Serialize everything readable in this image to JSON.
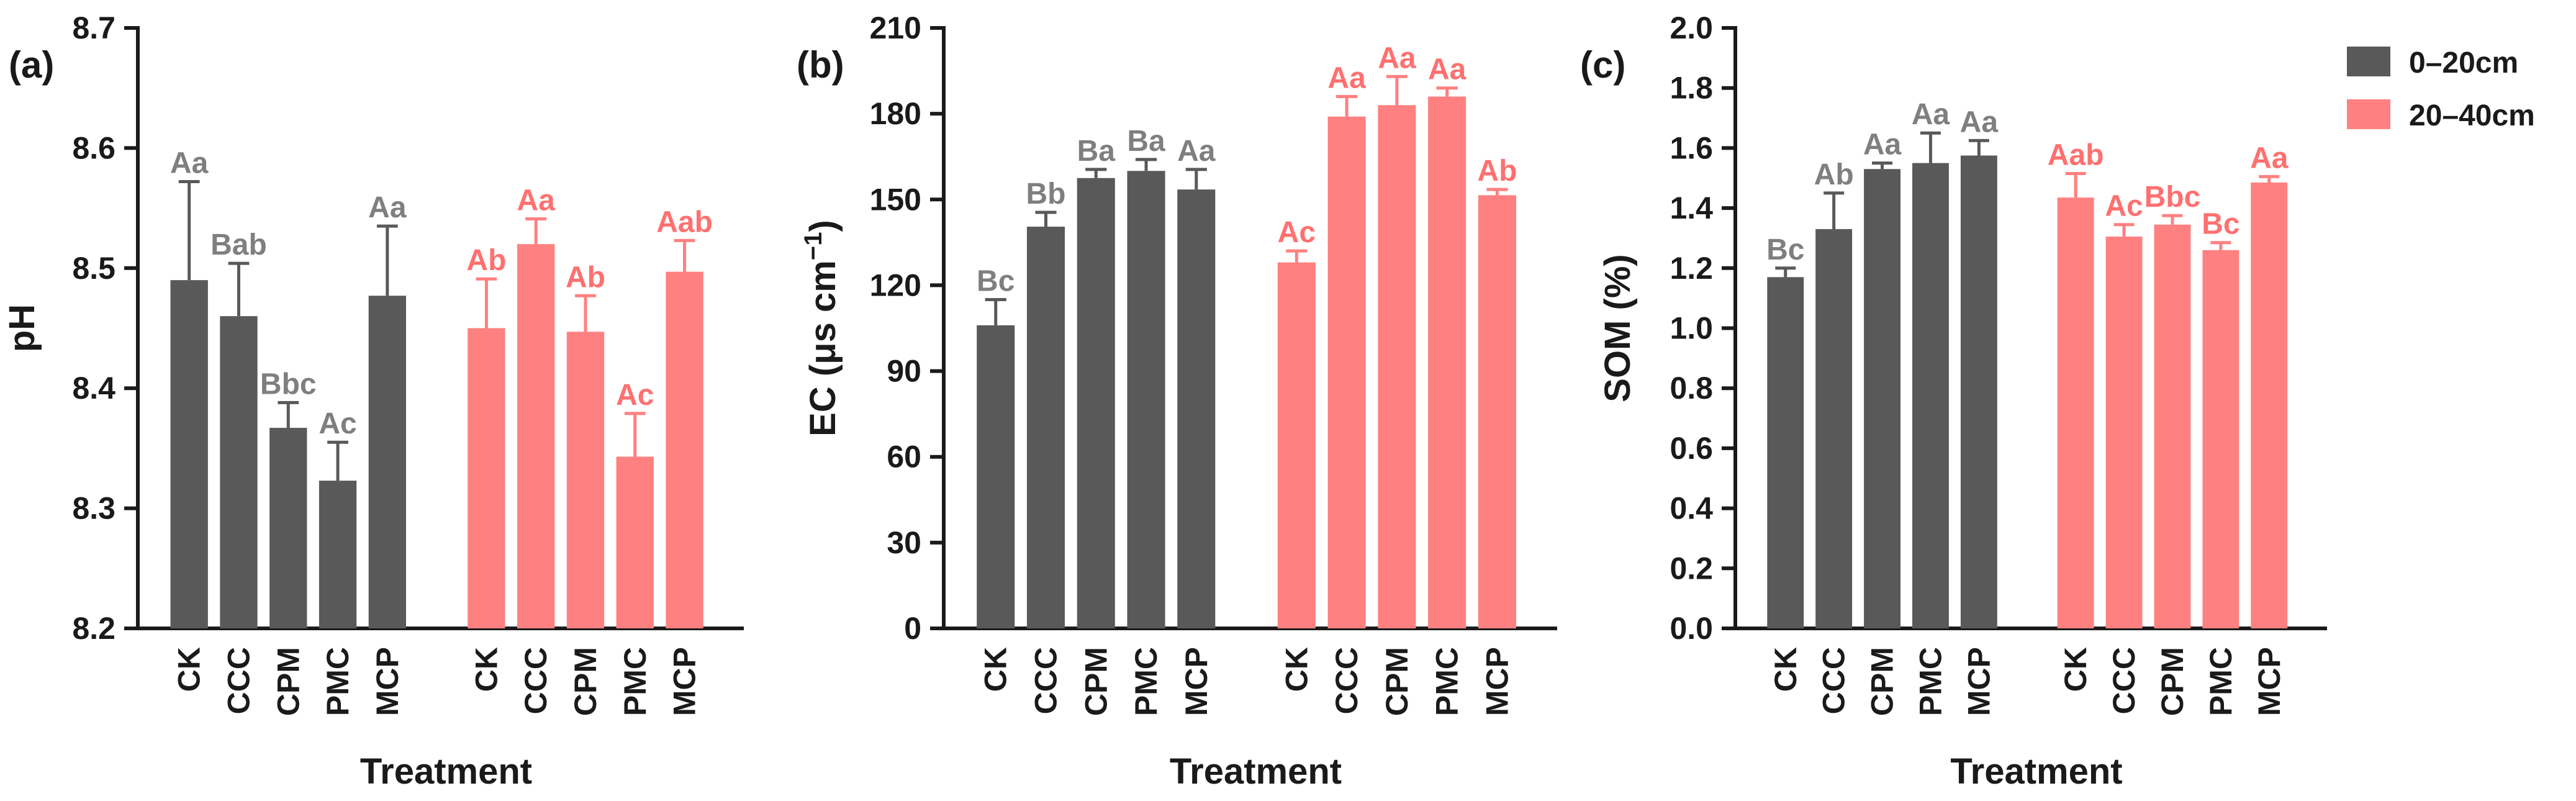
{
  "chart_data": [
    {
      "type": "bar",
      "panel_label": "(a)",
      "ylabel": "pH",
      "xlabel": "Treatment",
      "ylim": [
        8.2,
        8.7
      ],
      "yticks": [
        8.2,
        8.3,
        8.4,
        8.5,
        8.6,
        8.7
      ],
      "ytick_labels": [
        "8.2",
        "8.3",
        "8.4",
        "8.5",
        "8.6",
        "8.7"
      ],
      "categories": [
        "CK",
        "CCC",
        "CPM",
        "PMC",
        "MCP"
      ],
      "series": [
        {
          "name": "0–20cm",
          "values": [
            8.49,
            8.46,
            8.367,
            8.323,
            8.477
          ],
          "errors": [
            0.082,
            0.044,
            0.021,
            0.032,
            0.058
          ],
          "labels": [
            "Aa",
            "Bab",
            "Bbc",
            "Ac",
            "Aa"
          ]
        },
        {
          "name": "20–40cm",
          "values": [
            8.45,
            8.52,
            8.447,
            8.343,
            8.497
          ],
          "errors": [
            0.041,
            0.021,
            0.03,
            0.036,
            0.026
          ],
          "labels": [
            "Ab",
            "Aa",
            "Ab",
            "Ac",
            "Aab"
          ]
        }
      ]
    },
    {
      "type": "bar",
      "panel_label": "(b)",
      "ylabel": "EC (μs cm",
      "ylabel_sup": "−1",
      "ylabel_end": ")",
      "xlabel": "Treatment",
      "ylim": [
        0,
        210
      ],
      "yticks": [
        0,
        30,
        60,
        90,
        120,
        150,
        180,
        210
      ],
      "ytick_labels": [
        "0",
        "30",
        "60",
        "90",
        "120",
        "150",
        "180",
        "210"
      ],
      "categories": [
        "CK",
        "CCC",
        "CPM",
        "PMC",
        "MCP"
      ],
      "series": [
        {
          "name": "0–20cm",
          "values": [
            106,
            140.5,
            157.5,
            160,
            153.5
          ],
          "errors": [
            9,
            5,
            3,
            4,
            7
          ],
          "labels": [
            "Bc",
            "Bb",
            "Ba",
            "Ba",
            "Aa"
          ]
        },
        {
          "name": "20–40cm",
          "values": [
            128,
            179,
            183,
            186,
            151.5
          ],
          "errors": [
            4,
            7,
            10,
            3,
            2
          ],
          "labels": [
            "Ac",
            "Aa",
            "Aa",
            "Aa",
            "Ab"
          ]
        }
      ]
    },
    {
      "type": "bar",
      "panel_label": "(c)",
      "ylabel": "SOM (%)",
      "xlabel": "Treatment",
      "ylim": [
        0,
        2.0
      ],
      "yticks": [
        0,
        0.2,
        0.4,
        0.6,
        0.8,
        1.0,
        1.2,
        1.4,
        1.6,
        1.8,
        2.0
      ],
      "ytick_labels": [
        "0.0",
        "0.2",
        "0.4",
        "0.6",
        "0.8",
        "1.0",
        "1.2",
        "1.4",
        "1.6",
        "1.8",
        "2.0"
      ],
      "categories": [
        "CK",
        "CCC",
        "CPM",
        "PMC",
        "MCP"
      ],
      "series": [
        {
          "name": "0–20cm",
          "values": [
            1.17,
            1.33,
            1.53,
            1.55,
            1.575
          ],
          "errors": [
            0.03,
            0.12,
            0.02,
            0.1,
            0.05
          ],
          "labels": [
            "Bc",
            "Ab",
            "Aa",
            "Aa",
            "Aa"
          ]
        },
        {
          "name": "20–40cm",
          "values": [
            1.435,
            1.305,
            1.345,
            1.26,
            1.485
          ],
          "errors": [
            0.08,
            0.04,
            0.03,
            0.025,
            0.02
          ],
          "labels": [
            "Aab",
            "Ac",
            "Bbc",
            "Bc",
            "Aa"
          ]
        }
      ]
    }
  ],
  "legend": {
    "position": "top-right",
    "items": [
      {
        "name": "0–20cm",
        "color": "#595959"
      },
      {
        "name": "20–40cm",
        "color": "#ff8080"
      }
    ]
  },
  "colors": {
    "series_0": "#595959",
    "series_1": "#ff8080",
    "label_0": "#7f7f7f",
    "label_1": "#ff7070",
    "axis": "#1a1a1a"
  }
}
